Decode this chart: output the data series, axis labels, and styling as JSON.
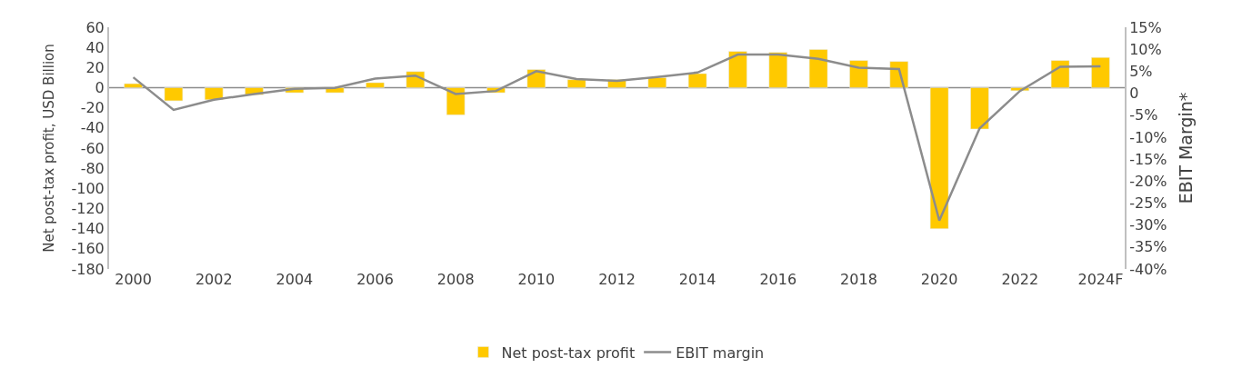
{
  "chart_data": {
    "type": "bar",
    "categories": [
      "2000",
      null,
      "2002",
      null,
      "2004",
      null,
      "2006",
      null,
      "2008",
      null,
      "2010",
      null,
      "2012",
      null,
      "2014",
      null,
      "2016",
      null,
      "2018",
      null,
      "2020",
      null,
      "2022",
      null,
      "2024F"
    ],
    "series": [
      {
        "name": "Net post-tax profit",
        "color": "#ffc900",
        "values": [
          4,
          -13,
          -12,
          -7,
          -5,
          -5,
          5,
          16,
          -27,
          -5,
          18,
          8,
          8,
          10,
          14,
          36,
          35,
          38,
          27,
          26,
          -140,
          -41,
          -3,
          27,
          30
        ]
      },
      {
        "name": "EBIT margin",
        "type": "line",
        "axis": "y2",
        "color": "#8c8c8c",
        "values": [
          3.6,
          -3.8,
          -1.5,
          -0.2,
          1,
          1.2,
          3.3,
          4,
          -0.2,
          0.5,
          5,
          3.2,
          2.8,
          3.7,
          4.7,
          8.8,
          8.8,
          7.8,
          5.8,
          5.5,
          -29,
          -8,
          0.5,
          6,
          6.1
        ]
      }
    ],
    "ylabel": "Net post-tax profit, USD Billion",
    "y2label": "EBIT Margin*",
    "ylim": [
      -180,
      60
    ],
    "yticks": [
      60,
      40,
      20,
      0,
      -20,
      -40,
      -60,
      -80,
      -100,
      -120,
      -140,
      -160,
      -180
    ],
    "y2lim": [
      -40,
      15
    ],
    "y2ticks": [
      {
        "value": 15,
        "label": "15%"
      },
      {
        "value": 10,
        "label": "10%"
      },
      {
        "value": 5,
        "label": "5%"
      },
      0,
      {
        "value": -5,
        "label": "-5%"
      },
      {
        "value": -10,
        "label": "-10%"
      },
      {
        "value": -15,
        "label": "-15%"
      },
      {
        "value": -20,
        "label": "-20%"
      },
      {
        "value": -25,
        "label": "-25%"
      },
      {
        "value": -30,
        "label": "-30%"
      },
      {
        "value": -35,
        "label": "-35%"
      },
      {
        "value": -40,
        "label": "-40%"
      }
    ],
    "ref_lines": [
      {
        "axis": "y",
        "value": 0,
        "color": "#8c8c8c"
      }
    ],
    "grid": false,
    "legend": "bottom",
    "marker": "none",
    "line_style": "solid"
  }
}
